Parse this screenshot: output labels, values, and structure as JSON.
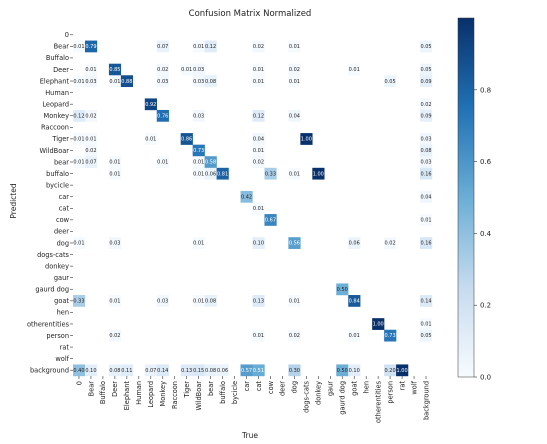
{
  "chart_data": {
    "type": "heatmap",
    "title": "Confusion Matrix Normalized",
    "xlabel": "True",
    "ylabel": "Predicted",
    "labels": [
      "0",
      "Bear",
      "Buffalo",
      "Deer",
      "Elephant",
      "Human",
      "Leopard",
      "Monkey",
      "Raccoon",
      "Tiger",
      "WildBoar",
      "bear",
      "buffalo",
      "bycicle",
      "car",
      "cat",
      "cow",
      "deer",
      "dog",
      "dogs-cats",
      "donkey",
      "gaur",
      "gaurd dog",
      "goat",
      "hen",
      "otherentities",
      "person",
      "rat",
      "wolf",
      "background"
    ],
    "colorbar": {
      "min": 0.0,
      "max": 1.0,
      "ticks": [
        0.0,
        0.2,
        0.4,
        0.6,
        0.8
      ],
      "tick_labels": [
        "0.0",
        "0.2",
        "0.4",
        "0.6",
        "0.8"
      ]
    },
    "colormap": [
      "#f7fbff",
      "#c6dbef",
      "#6baed6",
      "#2171b5",
      "#08306b"
    ],
    "cells": [
      {
        "row": 1,
        "col": 0,
        "value": 0.01,
        "label": "0.01"
      },
      {
        "row": 1,
        "col": 1,
        "value": 0.79,
        "label": "0.79"
      },
      {
        "row": 1,
        "col": 7,
        "value": 0.07,
        "label": "0.07"
      },
      {
        "row": 1,
        "col": 10,
        "value": 0.01,
        "label": "0.01"
      },
      {
        "row": 1,
        "col": 11,
        "value": 0.12,
        "label": "0.12"
      },
      {
        "row": 1,
        "col": 15,
        "value": 0.02,
        "label": "0.02"
      },
      {
        "row": 1,
        "col": 18,
        "value": 0.01,
        "label": "0.01"
      },
      {
        "row": 1,
        "col": 29,
        "value": 0.05,
        "label": "0.05"
      },
      {
        "row": 3,
        "col": 1,
        "value": 0.01,
        "label": "0.01"
      },
      {
        "row": 3,
        "col": 3,
        "value": 0.85,
        "label": "0.85"
      },
      {
        "row": 3,
        "col": 7,
        "value": 0.02,
        "label": "0.02"
      },
      {
        "row": 3,
        "col": 9,
        "value": 0.01,
        "label": "0.01"
      },
      {
        "row": 3,
        "col": 10,
        "value": 0.03,
        "label": "0.03"
      },
      {
        "row": 3,
        "col": 15,
        "value": 0.01,
        "label": "0.01"
      },
      {
        "row": 3,
        "col": 18,
        "value": 0.02,
        "label": "0.02"
      },
      {
        "row": 3,
        "col": 23,
        "value": 0.01,
        "label": "0.01"
      },
      {
        "row": 3,
        "col": 29,
        "value": 0.05,
        "label": "0.05"
      },
      {
        "row": 4,
        "col": 0,
        "value": 0.01,
        "label": "0.01"
      },
      {
        "row": 4,
        "col": 1,
        "value": 0.03,
        "label": "0.03"
      },
      {
        "row": 4,
        "col": 3,
        "value": 0.01,
        "label": "0.01"
      },
      {
        "row": 4,
        "col": 4,
        "value": 0.88,
        "label": "0.88"
      },
      {
        "row": 4,
        "col": 7,
        "value": 0.03,
        "label": "0.03"
      },
      {
        "row": 4,
        "col": 10,
        "value": 0.03,
        "label": "0.03"
      },
      {
        "row": 4,
        "col": 11,
        "value": 0.08,
        "label": "0.08"
      },
      {
        "row": 4,
        "col": 15,
        "value": 0.01,
        "label": "0.01"
      },
      {
        "row": 4,
        "col": 18,
        "value": 0.01,
        "label": "0.01"
      },
      {
        "row": 4,
        "col": 26,
        "value": 0.05,
        "label": "0.05"
      },
      {
        "row": 4,
        "col": 29,
        "value": 0.09,
        "label": "0.09"
      },
      {
        "row": 6,
        "col": 6,
        "value": 0.92,
        "label": "0.92"
      },
      {
        "row": 6,
        "col": 29,
        "value": 0.02,
        "label": "0.02"
      },
      {
        "row": 7,
        "col": 0,
        "value": 0.12,
        "label": "0.12"
      },
      {
        "row": 7,
        "col": 1,
        "value": 0.02,
        "label": "0.02"
      },
      {
        "row": 7,
        "col": 7,
        "value": 0.76,
        "label": "0.76"
      },
      {
        "row": 7,
        "col": 10,
        "value": 0.03,
        "label": "0.03"
      },
      {
        "row": 7,
        "col": 15,
        "value": 0.12,
        "label": "0.12"
      },
      {
        "row": 7,
        "col": 18,
        "value": 0.04,
        "label": "0.04"
      },
      {
        "row": 7,
        "col": 29,
        "value": 0.09,
        "label": "0.09"
      },
      {
        "row": 9,
        "col": 0,
        "value": 0.01,
        "label": "0.01"
      },
      {
        "row": 9,
        "col": 1,
        "value": 0.01,
        "label": "0.01"
      },
      {
        "row": 9,
        "col": 6,
        "value": 0.01,
        "label": "0.01"
      },
      {
        "row": 9,
        "col": 9,
        "value": 0.86,
        "label": "0.86"
      },
      {
        "row": 9,
        "col": 15,
        "value": 0.04,
        "label": "0.04"
      },
      {
        "row": 9,
        "col": 19,
        "value": 1.0,
        "label": "1.00"
      },
      {
        "row": 9,
        "col": 29,
        "value": 0.03,
        "label": "0.03"
      },
      {
        "row": 10,
        "col": 1,
        "value": 0.02,
        "label": "0.02"
      },
      {
        "row": 10,
        "col": 10,
        "value": 0.73,
        "label": "0.73"
      },
      {
        "row": 10,
        "col": 15,
        "value": 0.01,
        "label": "0.01"
      },
      {
        "row": 10,
        "col": 29,
        "value": 0.08,
        "label": "0.08"
      },
      {
        "row": 11,
        "col": 0,
        "value": 0.01,
        "label": "0.01"
      },
      {
        "row": 11,
        "col": 1,
        "value": 0.07,
        "label": "0.07"
      },
      {
        "row": 11,
        "col": 3,
        "value": 0.01,
        "label": "0.01"
      },
      {
        "row": 11,
        "col": 7,
        "value": 0.01,
        "label": "0.01"
      },
      {
        "row": 11,
        "col": 10,
        "value": 0.01,
        "label": "0.01"
      },
      {
        "row": 11,
        "col": 11,
        "value": 0.58,
        "label": "0.58"
      },
      {
        "row": 11,
        "col": 15,
        "value": 0.02,
        "label": "0.02"
      },
      {
        "row": 11,
        "col": 29,
        "value": 0.03,
        "label": "0.03"
      },
      {
        "row": 12,
        "col": 3,
        "value": 0.01,
        "label": "0.01"
      },
      {
        "row": 12,
        "col": 10,
        "value": 0.01,
        "label": "0.01"
      },
      {
        "row": 12,
        "col": 11,
        "value": 0.06,
        "label": "0.06"
      },
      {
        "row": 12,
        "col": 12,
        "value": 0.81,
        "label": "0.81"
      },
      {
        "row": 12,
        "col": 16,
        "value": 0.33,
        "label": "0.33"
      },
      {
        "row": 12,
        "col": 18,
        "value": 0.01,
        "label": "0.01"
      },
      {
        "row": 12,
        "col": 20,
        "value": 1.0,
        "label": "1.00"
      },
      {
        "row": 12,
        "col": 29,
        "value": 0.16,
        "label": "0.16"
      },
      {
        "row": 14,
        "col": 14,
        "value": 0.42,
        "label": "0.42"
      },
      {
        "row": 14,
        "col": 29,
        "value": 0.04,
        "label": "0.04"
      },
      {
        "row": 15,
        "col": 15,
        "value": 0.01,
        "label": "0.01"
      },
      {
        "row": 16,
        "col": 16,
        "value": 0.67,
        "label": "0.67"
      },
      {
        "row": 16,
        "col": 29,
        "value": 0.01,
        "label": "0.01"
      },
      {
        "row": 18,
        "col": 0,
        "value": 0.01,
        "label": "0.01"
      },
      {
        "row": 18,
        "col": 3,
        "value": 0.03,
        "label": "0.03"
      },
      {
        "row": 18,
        "col": 10,
        "value": 0.01,
        "label": "0.01"
      },
      {
        "row": 18,
        "col": 15,
        "value": 0.1,
        "label": "0.10"
      },
      {
        "row": 18,
        "col": 18,
        "value": 0.56,
        "label": "0.56"
      },
      {
        "row": 18,
        "col": 23,
        "value": 0.06,
        "label": "0.06"
      },
      {
        "row": 18,
        "col": 26,
        "value": 0.02,
        "label": "0.02"
      },
      {
        "row": 18,
        "col": 29,
        "value": 0.16,
        "label": "0.16"
      },
      {
        "row": 22,
        "col": 22,
        "value": 0.5,
        "label": "0.50"
      },
      {
        "row": 23,
        "col": 0,
        "value": 0.33,
        "label": "0.33"
      },
      {
        "row": 23,
        "col": 3,
        "value": 0.01,
        "label": "0.01"
      },
      {
        "row": 23,
        "col": 7,
        "value": 0.03,
        "label": "0.03"
      },
      {
        "row": 23,
        "col": 10,
        "value": 0.01,
        "label": "0.01"
      },
      {
        "row": 23,
        "col": 11,
        "value": 0.08,
        "label": "0.08"
      },
      {
        "row": 23,
        "col": 15,
        "value": 0.13,
        "label": "0.13"
      },
      {
        "row": 23,
        "col": 18,
        "value": 0.01,
        "label": "0.01"
      },
      {
        "row": 23,
        "col": 23,
        "value": 0.84,
        "label": "0.84"
      },
      {
        "row": 23,
        "col": 29,
        "value": 0.14,
        "label": "0.14"
      },
      {
        "row": 25,
        "col": 25,
        "value": 1.0,
        "label": "1.00"
      },
      {
        "row": 25,
        "col": 29,
        "value": 0.01,
        "label": "0.01"
      },
      {
        "row": 26,
        "col": 3,
        "value": 0.02,
        "label": "0.02"
      },
      {
        "row": 26,
        "col": 15,
        "value": 0.01,
        "label": "0.01"
      },
      {
        "row": 26,
        "col": 18,
        "value": 0.02,
        "label": "0.02"
      },
      {
        "row": 26,
        "col": 23,
        "value": 0.01,
        "label": "0.01"
      },
      {
        "row": 26,
        "col": 26,
        "value": 0.73,
        "label": "0.73"
      },
      {
        "row": 26,
        "col": 29,
        "value": 0.05,
        "label": "0.05"
      },
      {
        "row": 29,
        "col": 0,
        "value": 0.4,
        "label": "0.40"
      },
      {
        "row": 29,
        "col": 1,
        "value": 0.1,
        "label": "0.10"
      },
      {
        "row": 29,
        "col": 3,
        "value": 0.08,
        "label": "0.08"
      },
      {
        "row": 29,
        "col": 4,
        "value": 0.11,
        "label": "0.11"
      },
      {
        "row": 29,
        "col": 6,
        "value": 0.07,
        "label": "0.07"
      },
      {
        "row": 29,
        "col": 7,
        "value": 0.14,
        "label": "0.14"
      },
      {
        "row": 29,
        "col": 9,
        "value": 0.13,
        "label": "0.13"
      },
      {
        "row": 29,
        "col": 10,
        "value": 0.15,
        "label": "0.15"
      },
      {
        "row": 29,
        "col": 11,
        "value": 0.08,
        "label": "0.08"
      },
      {
        "row": 29,
        "col": 12,
        "value": 0.06,
        "label": "0.06"
      },
      {
        "row": 29,
        "col": 14,
        "value": 0.57,
        "label": "0.57"
      },
      {
        "row": 29,
        "col": 15,
        "value": 0.51,
        "label": "0.51"
      },
      {
        "row": 29,
        "col": 18,
        "value": 0.3,
        "label": "0.30"
      },
      {
        "row": 29,
        "col": 22,
        "value": 0.5,
        "label": "0.50"
      },
      {
        "row": 29,
        "col": 23,
        "value": 0.1,
        "label": "0.10"
      },
      {
        "row": 29,
        "col": 26,
        "value": 0.2,
        "label": "0.20"
      },
      {
        "row": 29,
        "col": 27,
        "value": 1.0,
        "label": "1.00"
      }
    ]
  }
}
